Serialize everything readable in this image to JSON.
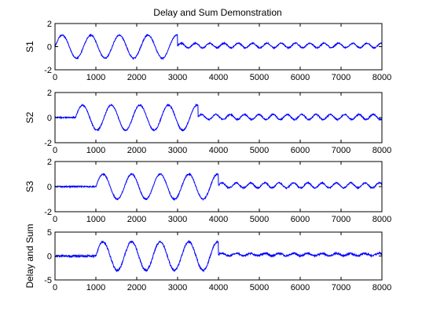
{
  "figure": {
    "title": "Delay and Sum Demonstration"
  },
  "chart_data": [
    {
      "type": "line",
      "ylabel": "S1",
      "xlim": [
        0,
        8000
      ],
      "ylim": [
        -2,
        2
      ],
      "x_ticks": [
        "0",
        "1000",
        "2000",
        "3000",
        "4000",
        "5000",
        "6000",
        "7000",
        "8000"
      ],
      "y_ticks": [
        "-2",
        "0",
        "2"
      ],
      "series": [
        {
          "color": "#0000ff",
          "signal": {
            "start": 0,
            "end": 3000,
            "amplitude": 1.0,
            "period": 700,
            "noise": 0.05
          },
          "interference": {
            "start": 3000,
            "end": 8000,
            "amplitude": 0.2,
            "period": 350,
            "offset": 0.1,
            "noise": 0.05
          }
        }
      ]
    },
    {
      "type": "line",
      "ylabel": "S2",
      "xlim": [
        0,
        8000
      ],
      "ylim": [
        -2,
        2
      ],
      "x_ticks": [
        "0",
        "1000",
        "2000",
        "3000",
        "4000",
        "5000",
        "6000",
        "7000",
        "8000"
      ],
      "y_ticks": [
        "-2",
        "0",
        "2"
      ],
      "series": [
        {
          "color": "#0000ff",
          "signal": {
            "start": 500,
            "end": 3500,
            "amplitude": 1.0,
            "period": 700,
            "noise": 0.05
          },
          "interference": {
            "start": 3500,
            "end": 8000,
            "amplitude": 0.2,
            "period": 350,
            "offset": 0.05,
            "noise": 0.05
          }
        }
      ]
    },
    {
      "type": "line",
      "ylabel": "S3",
      "xlim": [
        0,
        8000
      ],
      "ylim": [
        -2,
        2
      ],
      "x_ticks": [
        "0",
        "1000",
        "2000",
        "3000",
        "4000",
        "5000",
        "6000",
        "7000",
        "8000"
      ],
      "y_ticks": [
        "-2",
        "0",
        "2"
      ],
      "series": [
        {
          "color": "#0000ff",
          "signal": {
            "start": 1000,
            "end": 4000,
            "amplitude": 1.0,
            "period": 700,
            "noise": 0.05
          },
          "interference": {
            "start": 4000,
            "end": 8000,
            "amplitude": 0.2,
            "period": 350,
            "offset": 0.1,
            "noise": 0.05
          }
        }
      ]
    },
    {
      "type": "line",
      "ylabel": "Delay and Sum",
      "xlim": [
        0,
        8000
      ],
      "ylim": [
        -5,
        5
      ],
      "x_ticks": [
        "0",
        "1000",
        "2000",
        "3000",
        "4000",
        "5000",
        "6000",
        "7000",
        "8000"
      ],
      "y_ticks": [
        "-5",
        "0",
        "5"
      ],
      "series": [
        {
          "color": "#0000ff",
          "signal": {
            "start": 1000,
            "end": 4000,
            "amplitude": 3.0,
            "period": 700,
            "noise": 0.08
          },
          "interference": {
            "start": 4000,
            "end": 8000,
            "amplitude": 0.25,
            "period": 350,
            "offset": 0.3,
            "noise": 0.08
          }
        }
      ]
    }
  ]
}
